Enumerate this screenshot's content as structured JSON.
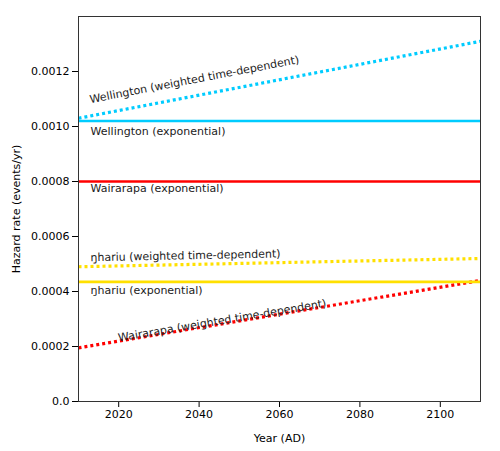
{
  "chart_data": {
    "type": "line",
    "xlabel": "Year (AD)",
    "ylabel": "Hazard rate (events/yr)",
    "x": [
      2010,
      2110
    ],
    "xlim": [
      2010,
      2110
    ],
    "ylim": [
      0.0,
      0.0014
    ],
    "xticks": [
      2020,
      2040,
      2060,
      2080,
      2100
    ],
    "yticks": [
      {
        "value": 0.0,
        "label": "0.0"
      },
      0.0002,
      0.0004,
      0.0006,
      0.0008,
      {
        "value": 0.001,
        "label": "0.0010"
      },
      0.0012
    ],
    "series": [
      {
        "name": "Wellington (exponential)",
        "color": "#00CCFF",
        "line_style": "solid",
        "values": [
          0.00102,
          0.00102
        ]
      },
      {
        "name": "Wellington (weighted time-dependent)",
        "color": "#00CCFF",
        "line_style": "dotted",
        "values": [
          0.00103,
          0.00131
        ]
      },
      {
        "name": "Wairarapa (exponential)",
        "color": "#FF0000",
        "line_style": "solid",
        "values": [
          0.0008,
          0.0008
        ]
      },
      {
        "name": "Wairarapa (weighted time-dependent)",
        "color": "#FF0000",
        "line_style": "dotted",
        "values": [
          0.000195,
          0.00044
        ]
      },
      {
        "name": "ŋhariu (exponential)",
        "color": "#FFE000",
        "line_style": "solid",
        "values": [
          0.000435,
          0.000435
        ]
      },
      {
        "name": "ŋhariu (weighted time-dependent)",
        "color": "#FFE000",
        "line_style": "dotted",
        "values": [
          0.00049,
          0.00052
        ]
      }
    ],
    "annotations": [
      {
        "text": "Wellington (exponential)",
        "x": 2013,
        "y": 0.00097
      },
      {
        "text": "Wellington (weighted time-dependent)",
        "x": 2013,
        "y": 0.001085
      },
      {
        "text": "Wairarapa (exponential)",
        "x": 2013,
        "y": 0.000762
      },
      {
        "text": "Wairarapa (weighted time-dependent)",
        "x": 2020,
        "y": 0.000218
      },
      {
        "text": "ŋhariu (exponential)",
        "x": 2013,
        "y": 0.000392
      },
      {
        "text": "ŋhariu (weighted time-dependent)",
        "x": 2013,
        "y": 0.00051
      }
    ]
  }
}
